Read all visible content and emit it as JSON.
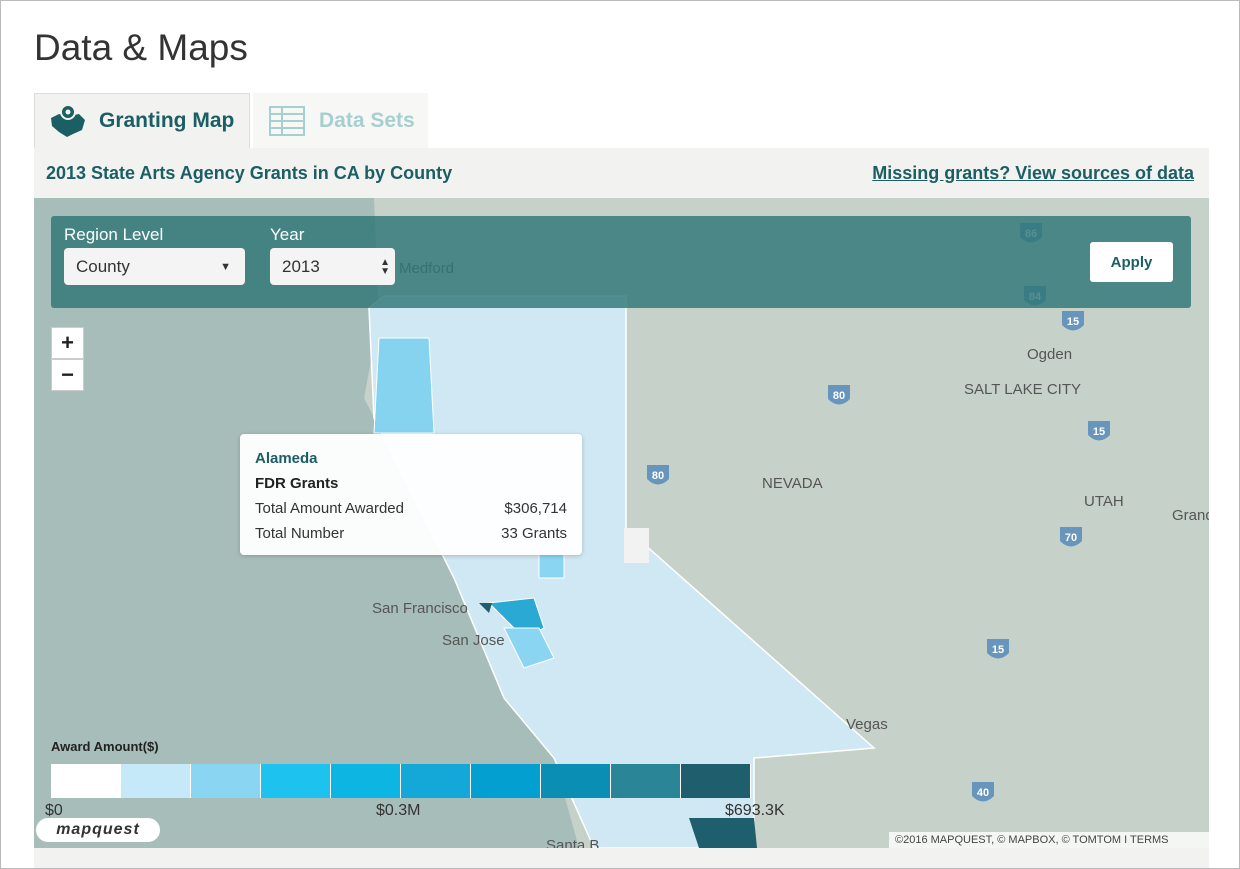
{
  "page_title": "Data & Maps",
  "tabs": [
    "Granting Map",
    "Data Sets"
  ],
  "subtitle": "2013 State Arts Agency Grants in CA by County",
  "link": "Missing grants? View sources of data",
  "controls": {
    "region_label": "Region Level",
    "region_value": "County",
    "year_label": "Year",
    "year_value": "2013",
    "apply": "Apply"
  },
  "zoom": [
    "+",
    "−"
  ],
  "tooltip": {
    "name": "Alameda",
    "program": "FDR Grants",
    "rows": [
      [
        "Total Amount Awarded",
        "$306,714"
      ],
      [
        "Total Number",
        "33 Grants"
      ]
    ]
  },
  "legend": {
    "title": "Award Amount($)",
    "colors": [
      "#ffffff",
      "#c6e9f8",
      "#8ad6f2",
      "#1ec2ee",
      "#0db5e2",
      "#14a8d9",
      "#049fd1",
      "#0a8eb3",
      "#2a8597",
      "#1f5e6d"
    ],
    "ticks": [
      "$0",
      "$0.3M",
      "$693.3K"
    ]
  },
  "map": {
    "labels": [
      "Medford",
      "Ogden",
      "SALT LAKE CITY",
      "NEVADA",
      "UTAH",
      "Grand",
      "San Francisco",
      "San Jose",
      "Vegas",
      "Santa B"
    ],
    "shields": [
      "86",
      "84",
      "15",
      "80",
      "15",
      "80",
      "70",
      "15",
      "40"
    ],
    "brand": "mapquest",
    "attribution": "©2016 MAPQUEST, © MAPBOX, © TOMTOM I TERMS"
  }
}
